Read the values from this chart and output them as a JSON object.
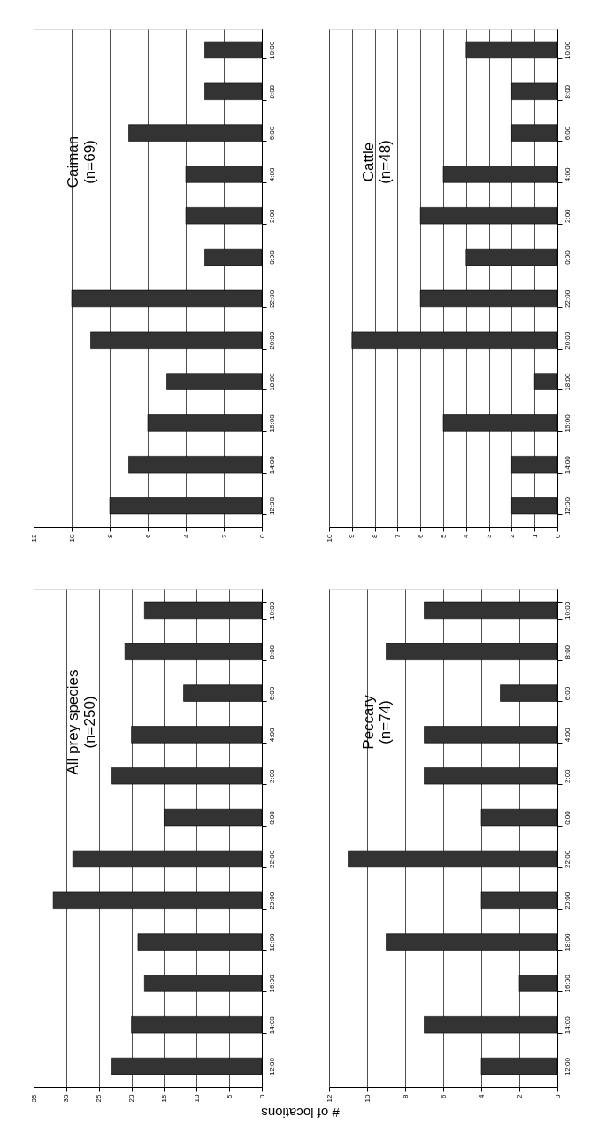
{
  "chart_data": [
    {
      "type": "bar",
      "orientation": "horizontal",
      "title": "Caiman",
      "subtitle": "(n=69)",
      "categories": [
        "10:00",
        "8:00",
        "6:00",
        "4:00",
        "2:00",
        "0:00",
        "22:00",
        "20:00",
        "18:00",
        "16:00",
        "14:00",
        "12:00"
      ],
      "values": [
        3,
        3,
        7,
        4,
        4,
        3,
        10,
        9,
        5,
        6,
        7,
        8
      ],
      "color": "#333333",
      "xlim": [
        12,
        0
      ],
      "xticks": [
        12,
        10,
        8,
        6,
        4,
        2,
        0
      ],
      "grid": "x"
    },
    {
      "type": "bar",
      "orientation": "horizontal",
      "title": "Cattle",
      "subtitle": "(n=48)",
      "categories": [
        "10:00",
        "8:00",
        "6:00",
        "4:00",
        "2:00",
        "0:00",
        "22:00",
        "20:00",
        "18:00",
        "16:00",
        "14:00",
        "12:00"
      ],
      "values": [
        4,
        2,
        2,
        5,
        6,
        4,
        6,
        9,
        1,
        5,
        2,
        2
      ],
      "color": "#333333",
      "xlim": [
        10,
        0
      ],
      "xticks": [
        10,
        9,
        8,
        7,
        6,
        5,
        4,
        3,
        2,
        1,
        0
      ],
      "grid": "x"
    },
    {
      "type": "bar",
      "orientation": "horizontal",
      "title": "All prey species",
      "subtitle": "(n=250)",
      "xlabel": "# of locations",
      "categories": [
        "10:00",
        "8:00",
        "6:00",
        "4:00",
        "2:00",
        "0:00",
        "22:00",
        "20:00",
        "18:00",
        "16:00",
        "14:00",
        "12:00"
      ],
      "values": [
        18,
        21,
        12,
        20,
        23,
        15,
        29,
        32,
        19,
        18,
        20,
        23
      ],
      "color": "#333333",
      "xlim": [
        35,
        0
      ],
      "xticks": [
        35,
        30,
        25,
        20,
        15,
        10,
        5,
        0
      ],
      "grid": "x"
    },
    {
      "type": "bar",
      "orientation": "horizontal",
      "title": "Peccary",
      "subtitle": "(n=74)",
      "categories": [
        "10:00",
        "8:00",
        "6:00",
        "4:00",
        "2:00",
        "0:00",
        "22:00",
        "20:00",
        "18:00",
        "16:00",
        "14:00",
        "12:00"
      ],
      "values": [
        7,
        9,
        3,
        7,
        7,
        4,
        11,
        4,
        9,
        2,
        7,
        4
      ],
      "color": "#333333",
      "xlim": [
        12,
        0
      ],
      "xticks": [
        12,
        10,
        8,
        6,
        4,
        2,
        0
      ],
      "grid": "x"
    }
  ]
}
